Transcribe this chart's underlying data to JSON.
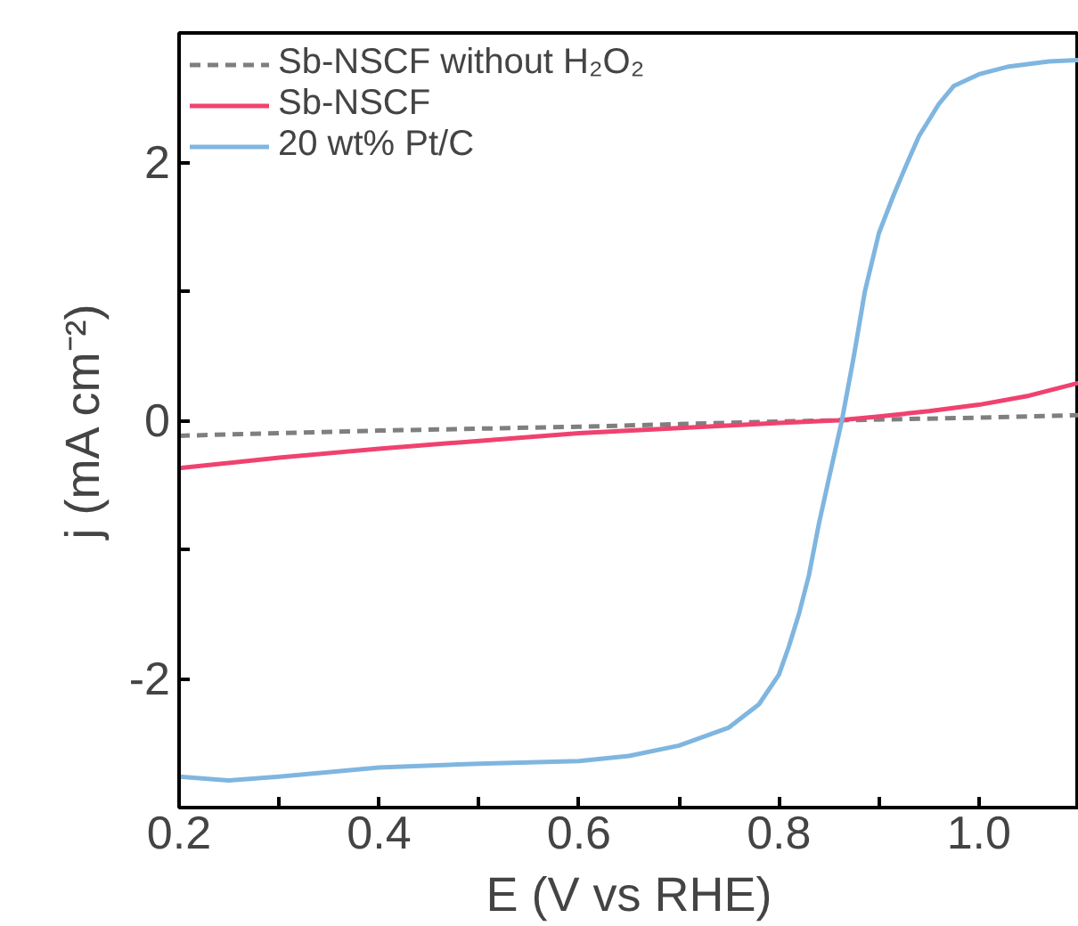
{
  "chart_data": {
    "type": "line",
    "xlabel": "E (V vs RHE)",
    "ylabel": "j (mA cm⁻²)",
    "xlim": [
      0.2,
      1.1
    ],
    "ylim": [
      -3,
      3
    ],
    "xticks": [
      0.2,
      {
        "value": 0.3,
        "label": null
      },
      0.4,
      {
        "value": 0.5,
        "label": null
      },
      0.6,
      {
        "value": 0.7,
        "label": null
      },
      0.8,
      {
        "value": 0.9,
        "label": null
      },
      {
        "value": 1.0,
        "label": "1.0"
      }
    ],
    "yticks": [
      -2,
      {
        "value": -1,
        "label": null
      },
      0,
      {
        "value": 1,
        "label": null
      },
      2
    ],
    "grid": false,
    "legend": "top left",
    "marker": "none",
    "series": [
      {
        "name": "Sb-NSCF without H₂O₂",
        "color": "#7f7f7f",
        "line_style": "dashed",
        "x": [
          0.2,
          0.4,
          0.6,
          0.8,
          0.86,
          1.0,
          1.1
        ],
        "values": [
          -0.12,
          -0.08,
          -0.05,
          -0.01,
          0,
          0.02,
          0.04
        ]
      },
      {
        "name": "Sb-NSCF",
        "color": "#f0426e",
        "line_style": "solid",
        "x": [
          0.2,
          0.3,
          0.4,
          0.5,
          0.6,
          0.7,
          0.8,
          0.86,
          0.9,
          0.95,
          1.0,
          1.05,
          1.1
        ],
        "values": [
          -0.37,
          -0.29,
          -0.22,
          -0.16,
          -0.1,
          -0.06,
          -0.02,
          0,
          0.03,
          0.07,
          0.12,
          0.19,
          0.29
        ]
      },
      {
        "name": "20 wt% Pt/C",
        "color": "#7fb6e0",
        "line_style": "solid",
        "x": [
          0.2,
          0.25,
          0.3,
          0.4,
          0.5,
          0.6,
          0.65,
          0.7,
          0.75,
          0.78,
          0.8,
          0.81,
          0.82,
          0.83,
          0.84,
          0.85,
          0.863,
          0.875,
          0.886,
          0.9,
          0.915,
          0.927,
          0.94,
          0.96,
          0.975,
          1.0,
          1.03,
          1.07,
          1.1
        ],
        "values": [
          -2.76,
          -2.79,
          -2.76,
          -2.69,
          -2.66,
          -2.64,
          -2.6,
          -2.52,
          -2.38,
          -2.2,
          -1.97,
          -1.75,
          -1.5,
          -1.2,
          -0.8,
          -0.45,
          0,
          0.5,
          1.0,
          1.45,
          1.75,
          1.97,
          2.2,
          2.45,
          2.59,
          2.68,
          2.74,
          2.78,
          2.79
        ]
      }
    ]
  }
}
